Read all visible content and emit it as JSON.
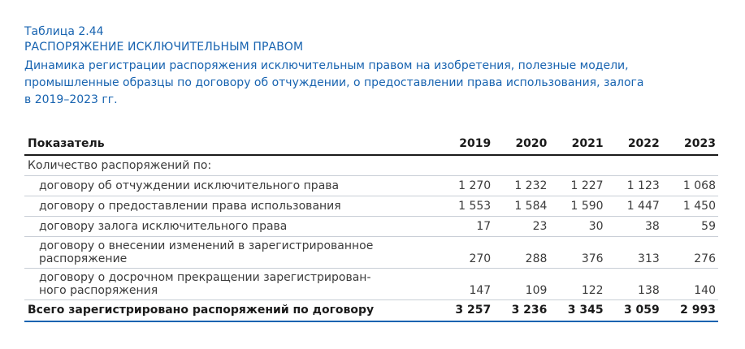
{
  "header": {
    "table_label": "Таблица 2.44",
    "title": "РАСПОРЯЖЕНИЕ ИСКЛЮЧИТЕЛЬНЫМ ПРАВОМ",
    "subtitle_lines": [
      "Динамика регистрации распоряжения исключительным правом на изобретения, полезные модели,",
      "промышленные образцы по договору об отчуждении, о предоставлении права использования, залога",
      "в 2019–2023 гг."
    ]
  },
  "table": {
    "columns": {
      "indicator": "Показатель",
      "years": [
        "2019",
        "2020",
        "2021",
        "2022",
        "2023"
      ]
    },
    "section_label": "Количество распоряжений по:",
    "rows": [
      {
        "label_lines": [
          "договору об отчуждении исключительного права"
        ],
        "values": [
          "1 270",
          "1 232",
          "1 227",
          "1 123",
          "1 068"
        ]
      },
      {
        "label_lines": [
          "договору о предоставлении права использования"
        ],
        "values": [
          "1 553",
          "1 584",
          "1 590",
          "1 447",
          "1 450"
        ]
      },
      {
        "label_lines": [
          "договору залога исключительного права"
        ],
        "values": [
          "17",
          "23",
          "30",
          "38",
          "59"
        ]
      },
      {
        "label_lines": [
          "договору о внесении изменений в зарегистрированное",
          "распоряжение"
        ],
        "values": [
          "270",
          "288",
          "376",
          "313",
          "276"
        ]
      },
      {
        "label_lines": [
          "договору о досрочном прекращении зарегистрирован-",
          "ного распоряжения"
        ],
        "values": [
          "147",
          "109",
          "122",
          "138",
          "140"
        ]
      }
    ],
    "total": {
      "label": "Всего зарегистрировано распоряжений по договору",
      "values": [
        "3 257",
        "3 236",
        "3 345",
        "3 059",
        "2 993"
      ]
    }
  },
  "colors": {
    "accent": "#1763b0",
    "rule": "#c8ced6",
    "text": "#1a1a1a"
  }
}
